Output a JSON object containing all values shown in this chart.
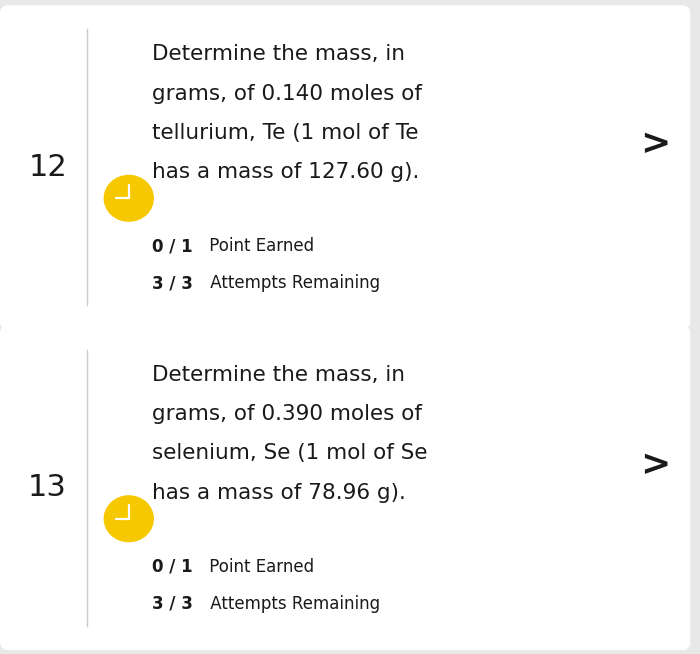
{
  "background_color": "#e8e8e8",
  "card_color": "#ffffff",
  "text_color": "#1a1a1a",
  "subtext_color": "#1a1a1a",
  "divider_color": "#cccccc",
  "number_fontsize": 22,
  "question_fontsize": 15.5,
  "sub_fontsize": 12,
  "arrow_fontsize": 26,
  "items": [
    {
      "number": "12",
      "question_lines": [
        "Determine the mass, in",
        "grams, of 0.140 moles of",
        "tellurium, Te (1 mol of Te",
        "has a mass of 127.60 g)."
      ],
      "points_bold": "0 / 1",
      "points_normal": " Point Earned",
      "attempts_bold": "3 / 3",
      "attempts_normal": " Attempts Remaining",
      "icon_color": "#f5c800"
    },
    {
      "number": "13",
      "question_lines": [
        "Determine the mass, in",
        "grams, of 0.390 moles of",
        "selenium, Se (1 mol of Se",
        "has a mass of 78.96 g)."
      ],
      "points_bold": "0 / 1",
      "points_normal": " Point Earned",
      "attempts_bold": "3 / 3",
      "attempts_normal": " Attempts Remaining",
      "icon_color": "#f5c800"
    }
  ]
}
